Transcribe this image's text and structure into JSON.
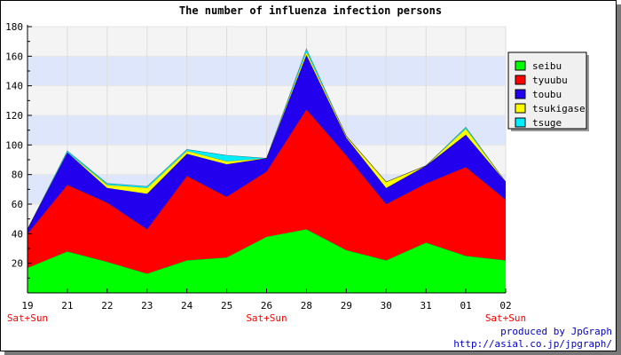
{
  "chart_data": {
    "type": "area",
    "stacked": true,
    "title": "The number of influenza infection persons",
    "categories": [
      "19",
      "21",
      "22",
      "23",
      "24",
      "25",
      "26",
      "28",
      "29",
      "30",
      "31",
      "01",
      "02"
    ],
    "category_sublabels": [
      "Sat+Sun",
      "",
      "",
      "",
      "",
      "",
      "Sat+Sun",
      "",
      "",
      "",
      "",
      "",
      "Sat+Sun"
    ],
    "ylim": [
      0,
      180
    ],
    "yticks": [
      20,
      40,
      60,
      80,
      100,
      120,
      140,
      160,
      180
    ],
    "grid": true,
    "legend_position": "right",
    "series": [
      {
        "name": "seibu",
        "color": "#00ff00",
        "values": [
          17,
          28,
          21,
          13,
          22,
          24,
          38,
          43,
          29,
          22,
          34,
          25,
          22
        ]
      },
      {
        "name": "tyuubu",
        "color": "#ff0000",
        "values": [
          23,
          45,
          40,
          30,
          57,
          41,
          44,
          81,
          64,
          38,
          40,
          60,
          41
        ]
      },
      {
        "name": "toubu",
        "color": "#2200ee",
        "values": [
          3,
          22,
          10,
          24,
          15,
          22,
          9,
          37,
          12,
          11,
          12,
          22,
          12
        ]
      },
      {
        "name": "tsukigase",
        "color": "#ffff00",
        "values": [
          0,
          0,
          2,
          4,
          2,
          2,
          0,
          2,
          1,
          4,
          0,
          4,
          0
        ]
      },
      {
        "name": "tsuge",
        "color": "#00eeff",
        "values": [
          0,
          1,
          1,
          1,
          1,
          4,
          0,
          2,
          0,
          0,
          0,
          1,
          0
        ]
      }
    ]
  },
  "credits": {
    "line1": "produced by JpGraph",
    "line2": "http://asial.co.jp/jpgraph/"
  },
  "colors": {
    "band_light": "#f4f4f4",
    "band_blue": "#dde6fb",
    "sublabel": "#ff0000",
    "credit": "#0000cc"
  }
}
